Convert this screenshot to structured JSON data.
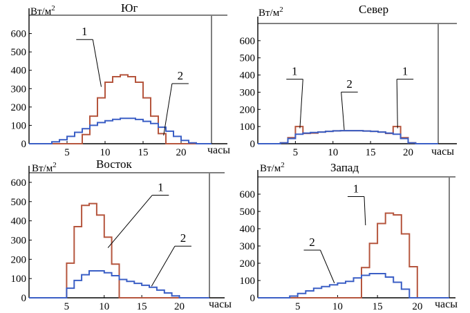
{
  "chart_data": [
    {
      "type": "line",
      "title": "Юг",
      "ylabel": "Вт/м",
      "ylabel_sup": "2",
      "xlabel": "часы",
      "xlim": [
        0,
        24
      ],
      "ylim": [
        0,
        700
      ],
      "xticks": [
        5,
        10,
        15,
        20
      ],
      "xtick_labels": [
        "5",
        "10",
        "15",
        "20"
      ],
      "yticks": [
        0,
        100,
        200,
        300,
        400,
        500,
        600
      ],
      "ytick_labels": [
        "0",
        "100",
        "200",
        "300",
        "400",
        "500",
        "600"
      ],
      "grid": false,
      "step": true,
      "x": [
        0,
        1,
        2,
        3,
        4,
        5,
        6,
        7,
        8,
        9,
        10,
        11,
        12,
        13,
        14,
        15,
        16,
        17,
        18,
        19,
        20,
        21,
        22,
        23,
        24
      ],
      "series": [
        {
          "label": "1",
          "color": "#b5553d",
          "values": [
            0,
            0,
            0,
            0,
            0,
            0,
            0,
            50,
            150,
            250,
            335,
            365,
            375,
            365,
            335,
            250,
            150,
            55,
            0,
            0,
            0,
            0,
            0,
            0,
            0
          ]
        },
        {
          "label": "2",
          "color": "#3a5ec5",
          "values": [
            0,
            0,
            0,
            10,
            22,
            40,
            62,
            82,
            100,
            115,
            125,
            133,
            138,
            138,
            132,
            122,
            110,
            90,
            68,
            40,
            18,
            5,
            0,
            0,
            0
          ]
        }
      ],
      "annotations": [
        {
          "text": "1",
          "x": 7.3,
          "y": 590,
          "series": 0,
          "target_x": 9.5,
          "target_y": 310
        },
        {
          "text": "2",
          "x": 19.9,
          "y": 350,
          "series": 1,
          "target_x": 17.7,
          "target_y": 45
        }
      ]
    },
    {
      "type": "line",
      "title": "Север",
      "ylabel": "Вт/м",
      "ylabel_sup": "2",
      "xlabel": "часы",
      "xlim": [
        0,
        24
      ],
      "ylim": [
        0,
        700
      ],
      "xticks": [
        5,
        10,
        15,
        20
      ],
      "xtick_labels": [
        "5",
        "10",
        "15",
        "20"
      ],
      "yticks": [
        0,
        100,
        200,
        300,
        400,
        500,
        600
      ],
      "ytick_labels": [
        "0",
        "100",
        "200",
        "300",
        "400",
        "500",
        "600"
      ],
      "grid": false,
      "step": true,
      "x": [
        0,
        1,
        2,
        3,
        4,
        5,
        6,
        7,
        8,
        9,
        10,
        11,
        12,
        13,
        14,
        15,
        16,
        17,
        18,
        19,
        20,
        21,
        22,
        23,
        24
      ],
      "series": [
        {
          "label": "1",
          "color": "#b5553d",
          "values": [
            0,
            0,
            0,
            5,
            35,
            100,
            60,
            62,
            68,
            72,
            75,
            76,
            76,
            76,
            74,
            72,
            68,
            60,
            100,
            35,
            5,
            0,
            0,
            0,
            0
          ]
        },
        {
          "label": "2",
          "color": "#3a5ec5",
          "values": [
            0,
            0,
            0,
            5,
            30,
            55,
            62,
            65,
            68,
            72,
            75,
            76,
            76,
            76,
            74,
            72,
            68,
            62,
            55,
            30,
            5,
            0,
            0,
            0,
            0
          ]
        }
      ],
      "annotations": [
        {
          "text": "1",
          "x": 4.9,
          "y": 400,
          "series": 0,
          "target_x": 5.6,
          "target_y": 90
        },
        {
          "text": "1",
          "x": 19.6,
          "y": 400,
          "series": 0,
          "target_x": 18.6,
          "target_y": 90
        },
        {
          "text": "2",
          "x": 12.2,
          "y": 325,
          "series": 1,
          "target_x": 11.5,
          "target_y": 80
        }
      ]
    },
    {
      "type": "line",
      "title": "Восток",
      "ylabel": "Вт/м",
      "ylabel_sup": "2",
      "xlabel": "часы",
      "xlim": [
        0,
        24
      ],
      "ylim": [
        0,
        650
      ],
      "xticks": [
        5,
        10,
        15,
        20
      ],
      "xtick_labels": [
        "5",
        "10",
        "15",
        "20"
      ],
      "yticks": [
        0,
        100,
        200,
        300,
        400,
        500,
        600
      ],
      "ytick_labels": [
        "0",
        "100",
        "200",
        "300",
        "400",
        "500",
        "600"
      ],
      "grid": false,
      "step": true,
      "x": [
        0,
        1,
        2,
        3,
        4,
        5,
        6,
        7,
        8,
        9,
        10,
        11,
        12,
        13,
        14,
        15,
        16,
        17,
        18,
        19,
        20,
        21,
        22,
        23,
        24
      ],
      "series": [
        {
          "label": "1",
          "color": "#b5553d",
          "values": [
            0,
            0,
            0,
            0,
            0,
            180,
            370,
            480,
            490,
            430,
            315,
            175,
            0,
            0,
            0,
            0,
            0,
            0,
            0,
            0,
            0,
            0,
            0,
            0,
            0
          ]
        },
        {
          "label": "2",
          "color": "#3a5ec5",
          "values": [
            0,
            0,
            0,
            0,
            0,
            50,
            90,
            120,
            140,
            140,
            130,
            115,
            95,
            85,
            75,
            65,
            55,
            40,
            25,
            10,
            0,
            0,
            0,
            0,
            0
          ]
        }
      ],
      "annotations": [
        {
          "text": "1",
          "x": 17.5,
          "y": 555,
          "series": 0,
          "target_x": 10.5,
          "target_y": 260
        },
        {
          "text": "2",
          "x": 20.5,
          "y": 290,
          "series": 1,
          "target_x": 16.3,
          "target_y": 60
        }
      ]
    },
    {
      "type": "line",
      "title": "Запад",
      "ylabel": "Вт/м",
      "ylabel_sup": "2",
      "xlabel": "часы",
      "xlim": [
        0,
        24
      ],
      "ylim": [
        0,
        700
      ],
      "xticks": [
        5,
        10,
        15,
        20
      ],
      "xtick_labels": [
        "5",
        "10",
        "15",
        "20"
      ],
      "yticks": [
        0,
        100,
        200,
        300,
        400,
        500,
        600
      ],
      "ytick_labels": [
        "0",
        "100",
        "200",
        "300",
        "400",
        "500",
        "600"
      ],
      "grid": false,
      "step": true,
      "x": [
        0,
        1,
        2,
        3,
        4,
        5,
        6,
        7,
        8,
        9,
        10,
        11,
        12,
        13,
        14,
        15,
        16,
        17,
        18,
        19,
        20,
        21,
        22,
        23,
        24
      ],
      "series": [
        {
          "label": "1",
          "color": "#b5553d",
          "values": [
            0,
            0,
            0,
            0,
            0,
            0,
            0,
            0,
            0,
            0,
            0,
            0,
            0,
            175,
            315,
            430,
            490,
            480,
            370,
            180,
            0,
            0,
            0,
            0,
            0
          ]
        },
        {
          "label": "2",
          "color": "#3a5ec5",
          "values": [
            0,
            0,
            0,
            0,
            10,
            25,
            40,
            55,
            65,
            75,
            85,
            95,
            115,
            130,
            140,
            140,
            120,
            90,
            50,
            0,
            0,
            0,
            0,
            0,
            0
          ]
        }
      ],
      "annotations": [
        {
          "text": "1",
          "x": 12.3,
          "y": 610,
          "series": 0,
          "target_x": 13.5,
          "target_y": 420
        },
        {
          "text": "2",
          "x": 6.8,
          "y": 300,
          "series": 1,
          "target_x": 9.6,
          "target_y": 85
        }
      ]
    }
  ],
  "colors": {
    "series_1": "#b5553d",
    "series_2": "#3a5ec5",
    "frame": "#7f7f7f",
    "axis": "#000000",
    "background": "#ffffff"
  }
}
